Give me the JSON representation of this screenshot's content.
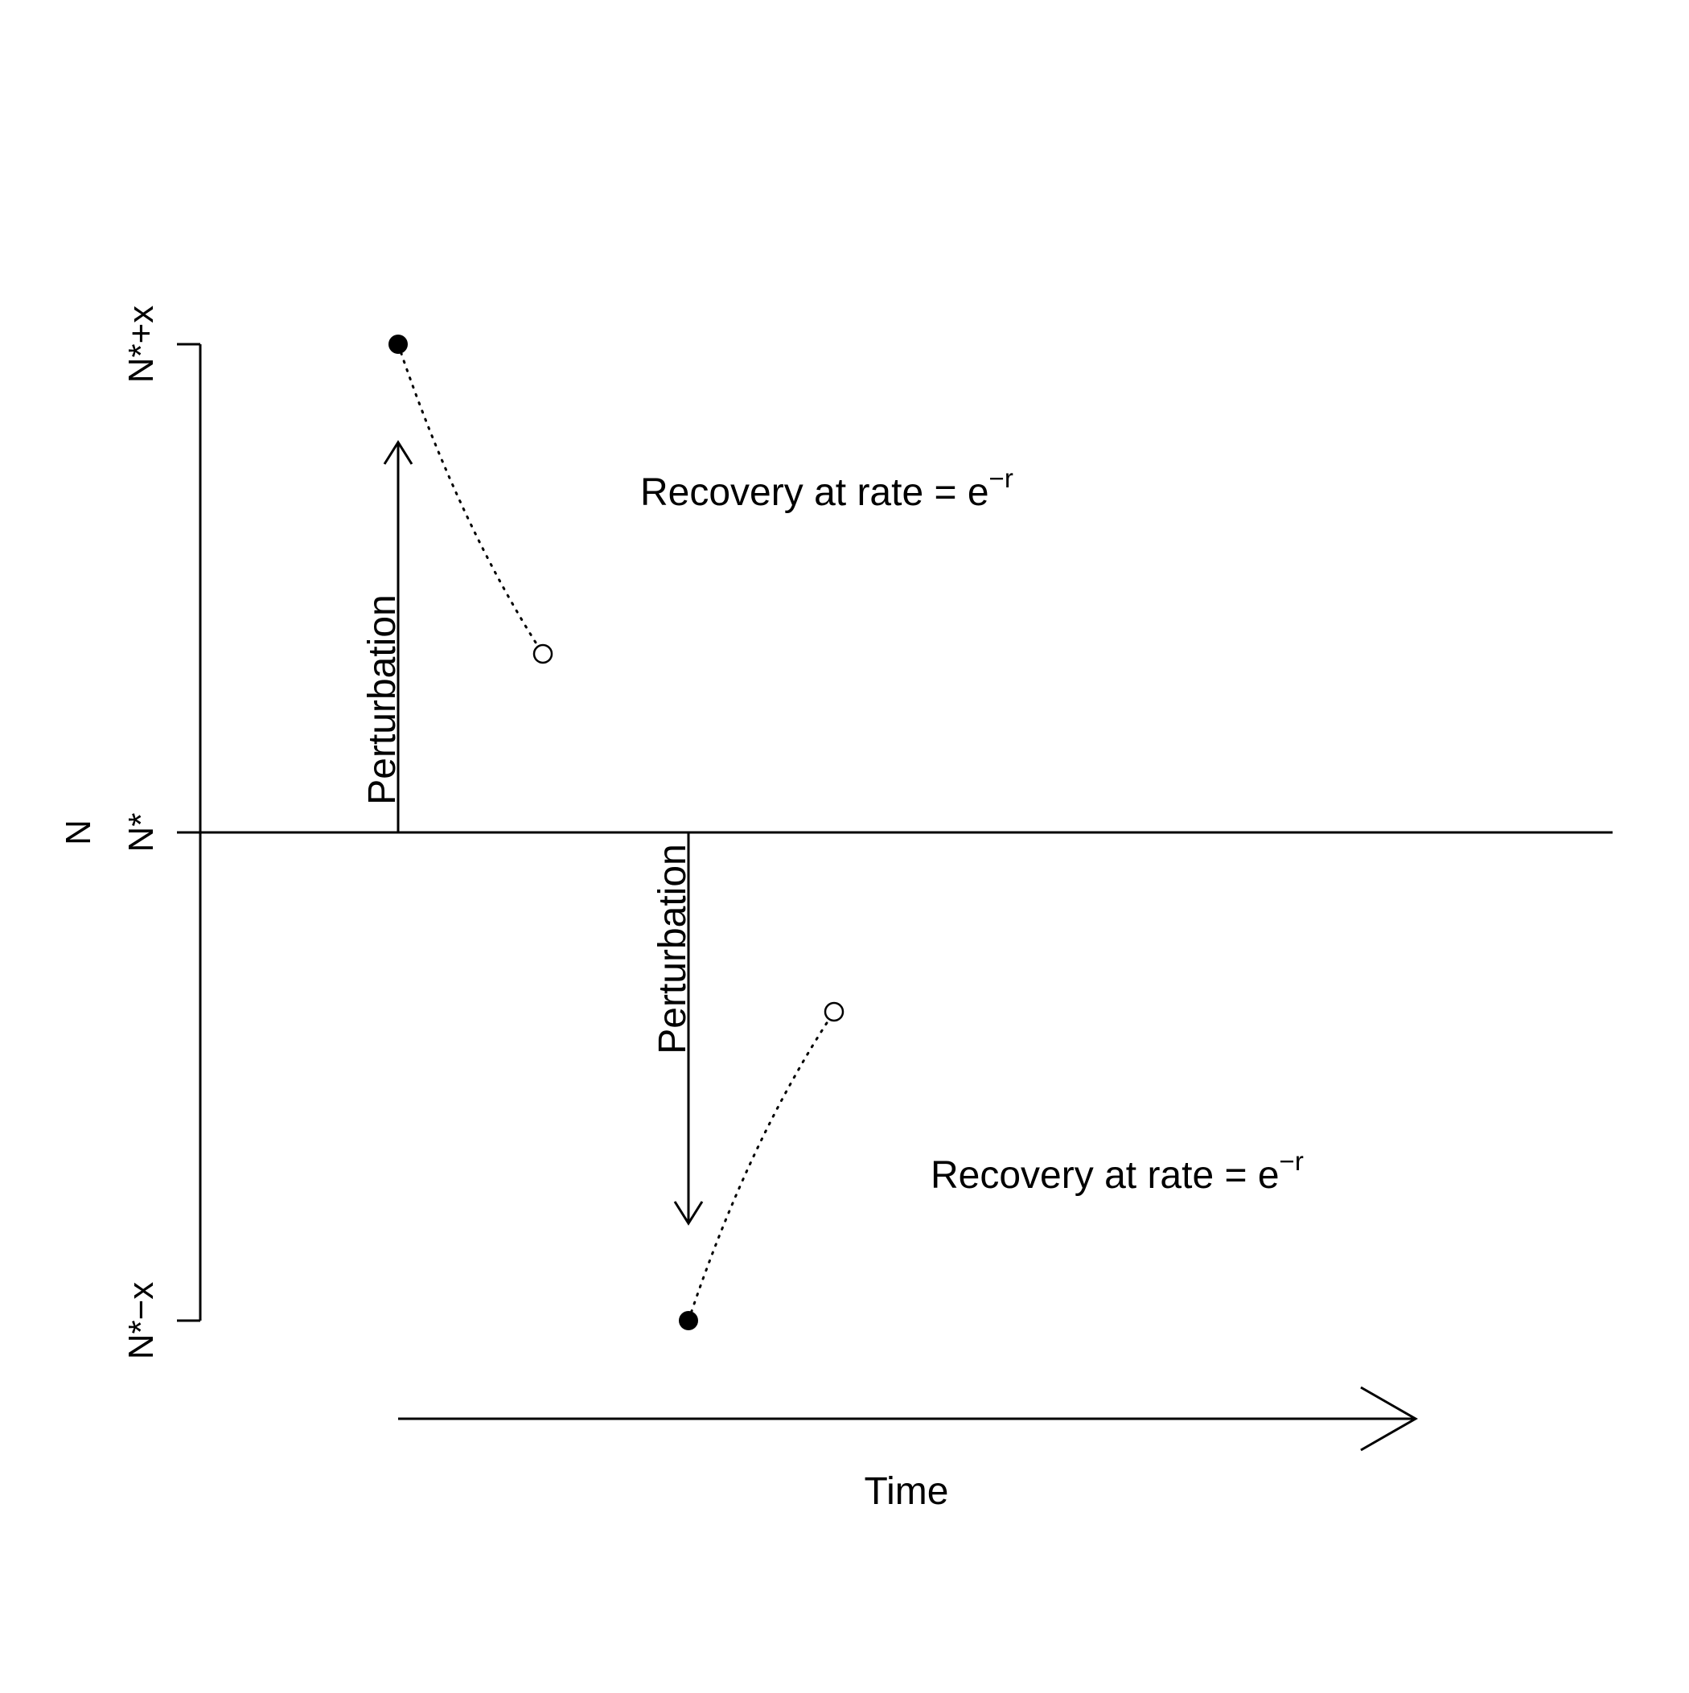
{
  "diagram": {
    "y_axis": {
      "title": "N",
      "ticks": [
        {
          "label": "N*+x"
        },
        {
          "label": "N*"
        },
        {
          "label": "N*−x"
        }
      ]
    },
    "upper": {
      "arrow_label": "Perturbation",
      "recovery_text": "Recovery at rate = e",
      "recovery_exponent": "−r"
    },
    "lower": {
      "arrow_label": "Perturbation",
      "recovery_text": "Recovery at rate = e",
      "recovery_exponent": "−r"
    },
    "time_label": "Time",
    "colors": {
      "ink": "#000000",
      "background": "#ffffff"
    }
  }
}
